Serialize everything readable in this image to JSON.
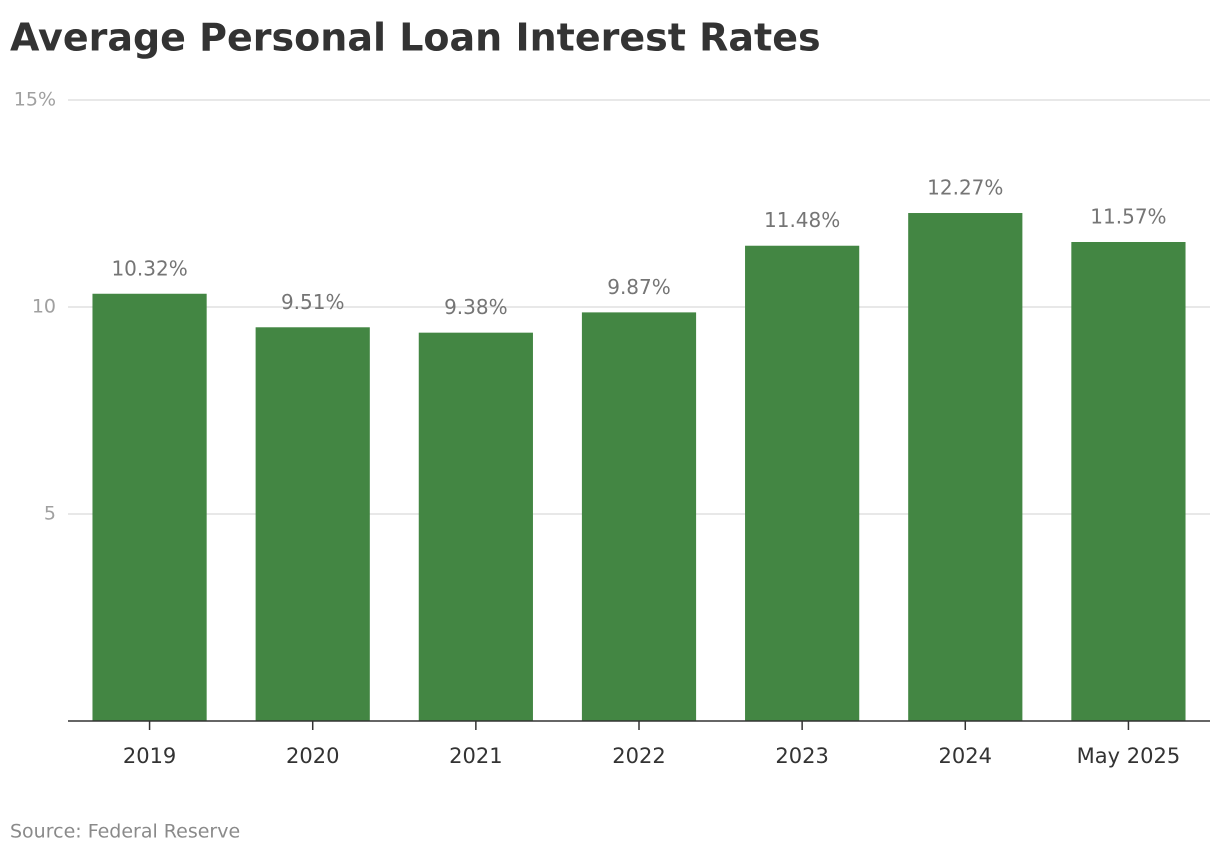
{
  "chart_data": {
    "type": "bar",
    "title": "Average Personal Loan Interest Rates",
    "categories": [
      "2019",
      "2020",
      "2021",
      "2022",
      "2023",
      "2024",
      "May 2025"
    ],
    "values": [
      10.32,
      9.51,
      9.38,
      9.87,
      11.48,
      12.27,
      11.57
    ],
    "value_labels": [
      "10.32%",
      "9.51%",
      "9.38%",
      "9.87%",
      "11.48%",
      "12.27%",
      "11.57%"
    ],
    "color": "#438643",
    "ylim": [
      0,
      15
    ],
    "yticks": [
      5,
      10,
      {
        "value": 15,
        "label": "15%"
      }
    ],
    "grid": true,
    "source": "Source: Federal Reserve"
  }
}
